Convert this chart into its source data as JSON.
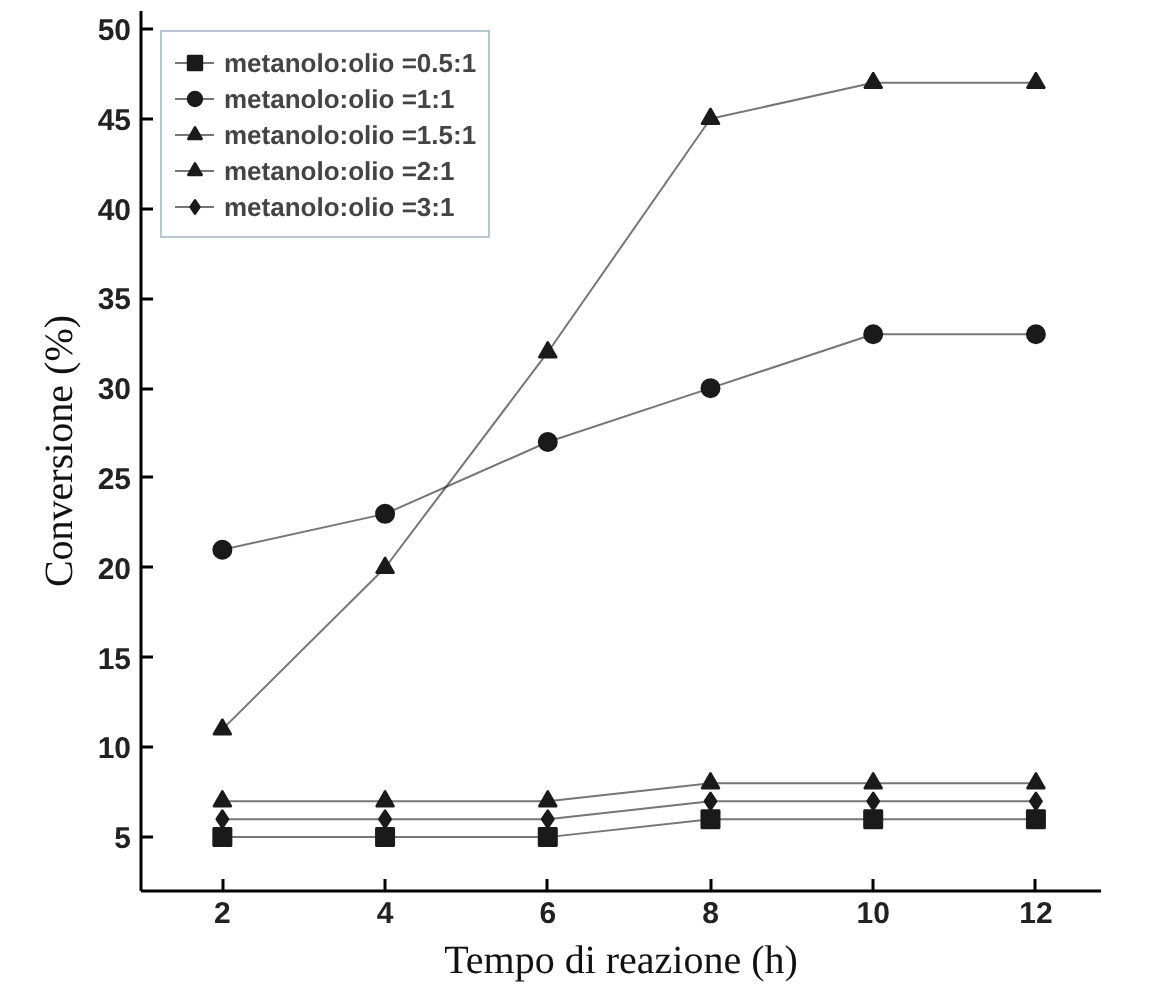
{
  "chart_data": {
    "type": "line",
    "xlabel": "Tempo di reazione (h)",
    "ylabel": "Conversione (%)",
    "x": [
      2,
      4,
      6,
      8,
      10,
      12
    ],
    "xlim": [
      1,
      12.8
    ],
    "xticks": [
      2,
      4,
      6,
      8,
      10,
      12
    ],
    "ylim": [
      2,
      51
    ],
    "yticks": [
      5,
      10,
      15,
      20,
      25,
      30,
      35,
      40,
      45,
      50
    ],
    "grid": false,
    "legend": "top left",
    "line_style": "solid",
    "series": [
      {
        "name": "metanolo:olio =0.5:1",
        "color": "#1a1a1a",
        "marker": "square",
        "values": [
          5,
          5,
          5,
          6,
          6,
          6
        ]
      },
      {
        "name": "metanolo:olio =1:1",
        "color": "#1a1a1a",
        "marker": "circle",
        "values": [
          21,
          23,
          27,
          30,
          33,
          33
        ]
      },
      {
        "name": "metanolo:olio =1.5:1",
        "color": "#1a1a1a",
        "marker": "triangle",
        "values": [
          11,
          20,
          32,
          45,
          47,
          47
        ]
      },
      {
        "name": "metanolo:olio =2:1",
        "color": "#1a1a1a",
        "marker": "triangle",
        "values": [
          7,
          7,
          7,
          8,
          8,
          8
        ]
      },
      {
        "name": "metanolo:olio =3:1",
        "color": "#1a1a1a",
        "marker": "diamond",
        "values": [
          6,
          6,
          6,
          7,
          7,
          7
        ]
      }
    ]
  }
}
